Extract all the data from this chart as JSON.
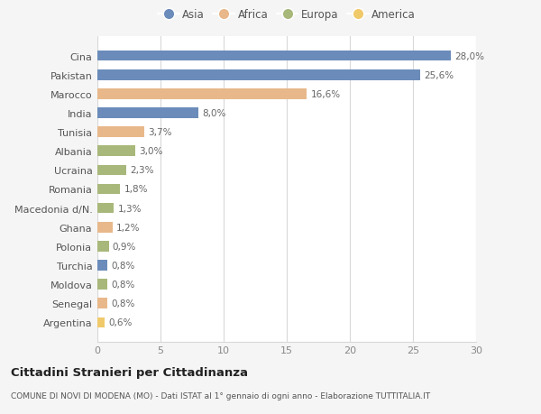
{
  "countries": [
    "Cina",
    "Pakistan",
    "Marocco",
    "India",
    "Tunisia",
    "Albania",
    "Ucraina",
    "Romania",
    "Macedonia d/N.",
    "Ghana",
    "Polonia",
    "Turchia",
    "Moldova",
    "Senegal",
    "Argentina"
  ],
  "values": [
    28.0,
    25.6,
    16.6,
    8.0,
    3.7,
    3.0,
    2.3,
    1.8,
    1.3,
    1.2,
    0.9,
    0.8,
    0.8,
    0.8,
    0.6
  ],
  "labels": [
    "28,0%",
    "25,6%",
    "16,6%",
    "8,0%",
    "3,7%",
    "3,0%",
    "2,3%",
    "1,8%",
    "1,3%",
    "1,2%",
    "0,9%",
    "0,8%",
    "0,8%",
    "0,8%",
    "0,6%"
  ],
  "continents": [
    "Asia",
    "Asia",
    "Africa",
    "Asia",
    "Africa",
    "Europa",
    "Europa",
    "Europa",
    "Europa",
    "Africa",
    "Europa",
    "Asia",
    "Europa",
    "Africa",
    "America"
  ],
  "continent_colors": {
    "Asia": "#6b8cba",
    "Africa": "#e8b88a",
    "Europa": "#a8b87a",
    "America": "#f0c96a"
  },
  "legend_order": [
    "Asia",
    "Africa",
    "Europa",
    "America"
  ],
  "title": "Cittadini Stranieri per Cittadinanza",
  "subtitle": "COMUNE DI NOVI DI MODENA (MO) - Dati ISTAT al 1° gennaio di ogni anno - Elaborazione TUTTITALIA.IT",
  "xlim": [
    0,
    30
  ],
  "xticks": [
    0,
    5,
    10,
    15,
    20,
    25,
    30
  ],
  "background_color": "#f5f5f5",
  "bar_background": "#ffffff",
  "grid_color": "#d8d8d8"
}
